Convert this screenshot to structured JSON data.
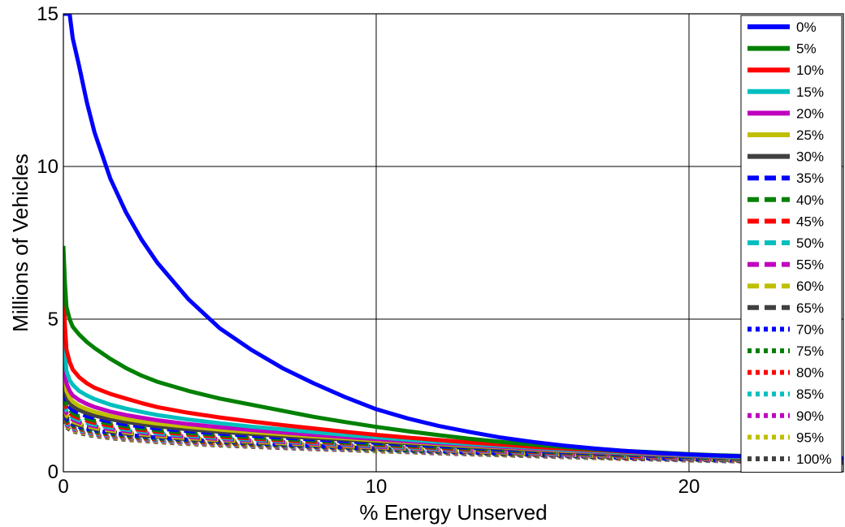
{
  "chart_data": {
    "type": "line",
    "title": "",
    "xlabel": "% Energy Unserved",
    "ylabel": "Millions of Vehicles",
    "xlim": [
      0,
      25
    ],
    "ylim": [
      0,
      15
    ],
    "xticks": [
      0,
      10,
      20
    ],
    "yticks": [
      0,
      5,
      10,
      15
    ],
    "grid": true,
    "legend_position": "right",
    "x": [
      0.05,
      0.1,
      0.2,
      0.3,
      0.5,
      0.75,
      1,
      1.5,
      2,
      2.5,
      3,
      4,
      5,
      6,
      7,
      8,
      9,
      10,
      11,
      12,
      13,
      14,
      15,
      16,
      17,
      18,
      19,
      20,
      21,
      22,
      23,
      24,
      25
    ],
    "series": [
      {
        "name": "0%",
        "color": "#0000ff",
        "style": "solid",
        "values": [
          15.0,
          15.0,
          15.0,
          14.2,
          13.3,
          12.1,
          11.1,
          9.6,
          8.5,
          7.6,
          6.85,
          5.65,
          4.7,
          4.0,
          3.4,
          2.9,
          2.45,
          2.05,
          1.75,
          1.5,
          1.3,
          1.12,
          0.98,
          0.86,
          0.76,
          0.68,
          0.62,
          0.57,
          0.53,
          0.5,
          0.48,
          0.46,
          0.44
        ]
      },
      {
        "name": "5%",
        "color": "#008000",
        "style": "solid",
        "values": [
          6.2,
          5.4,
          5.0,
          4.75,
          4.5,
          4.25,
          4.05,
          3.7,
          3.4,
          3.15,
          2.95,
          2.65,
          2.4,
          2.2,
          2.0,
          1.8,
          1.63,
          1.47,
          1.33,
          1.2,
          1.08,
          0.98,
          0.89,
          0.81,
          0.74,
          0.68,
          0.63,
          0.58,
          0.54,
          0.51,
          0.48,
          0.46,
          0.44
        ]
      },
      {
        "name": "10%",
        "color": "#ff0000",
        "style": "solid",
        "values": [
          4.8,
          4.0,
          3.6,
          3.35,
          3.1,
          2.9,
          2.75,
          2.55,
          2.4,
          2.25,
          2.12,
          1.93,
          1.78,
          1.65,
          1.53,
          1.42,
          1.31,
          1.21,
          1.12,
          1.04,
          0.96,
          0.89,
          0.82,
          0.76,
          0.71,
          0.66,
          0.61,
          0.57,
          0.53,
          0.5,
          0.47,
          0.45,
          0.43
        ]
      },
      {
        "name": "15%",
        "color": "#00bfbf",
        "style": "solid",
        "values": [
          3.9,
          3.3,
          3.0,
          2.85,
          2.65,
          2.5,
          2.38,
          2.2,
          2.07,
          1.96,
          1.86,
          1.71,
          1.59,
          1.48,
          1.39,
          1.3,
          1.21,
          1.13,
          1.05,
          0.98,
          0.91,
          0.85,
          0.79,
          0.73,
          0.68,
          0.63,
          0.59,
          0.55,
          0.51,
          0.48,
          0.45,
          0.43,
          0.41
        ]
      },
      {
        "name": "20%",
        "color": "#bf00bf",
        "style": "solid",
        "values": [
          3.4,
          2.9,
          2.65,
          2.5,
          2.35,
          2.22,
          2.12,
          1.97,
          1.86,
          1.77,
          1.69,
          1.56,
          1.46,
          1.37,
          1.29,
          1.21,
          1.14,
          1.07,
          1.0,
          0.94,
          0.88,
          0.82,
          0.76,
          0.71,
          0.66,
          0.62,
          0.58,
          0.54,
          0.5,
          0.47,
          0.44,
          0.42,
          0.4
        ]
      },
      {
        "name": "25%",
        "color": "#bfbf00",
        "style": "solid",
        "values": [
          3.1,
          2.65,
          2.42,
          2.3,
          2.16,
          2.05,
          1.96,
          1.83,
          1.73,
          1.65,
          1.58,
          1.47,
          1.38,
          1.3,
          1.23,
          1.16,
          1.1,
          1.03,
          0.97,
          0.91,
          0.85,
          0.8,
          0.74,
          0.69,
          0.65,
          0.61,
          0.57,
          0.53,
          0.49,
          0.46,
          0.43,
          0.41,
          0.39
        ]
      },
      {
        "name": "30%",
        "color": "#404040",
        "style": "solid",
        "values": [
          2.8,
          2.45,
          2.25,
          2.14,
          2.02,
          1.92,
          1.84,
          1.72,
          1.63,
          1.56,
          1.49,
          1.39,
          1.31,
          1.24,
          1.17,
          1.11,
          1.05,
          0.99,
          0.93,
          0.88,
          0.82,
          0.77,
          0.72,
          0.67,
          0.63,
          0.59,
          0.55,
          0.51,
          0.48,
          0.45,
          0.42,
          0.4,
          0.38
        ]
      },
      {
        "name": "35%",
        "color": "#0000ff",
        "style": "dashed",
        "values": [
          2.6,
          2.3,
          2.12,
          2.02,
          1.91,
          1.82,
          1.75,
          1.64,
          1.55,
          1.48,
          1.42,
          1.33,
          1.25,
          1.18,
          1.12,
          1.06,
          1.0,
          0.95,
          0.89,
          0.84,
          0.79,
          0.74,
          0.69,
          0.65,
          0.61,
          0.57,
          0.53,
          0.5,
          0.47,
          0.44,
          0.41,
          0.39,
          0.37
        ]
      },
      {
        "name": "40%",
        "color": "#008000",
        "style": "dashed",
        "values": [
          2.45,
          2.18,
          2.02,
          1.92,
          1.82,
          1.74,
          1.67,
          1.57,
          1.49,
          1.42,
          1.36,
          1.27,
          1.2,
          1.13,
          1.07,
          1.02,
          0.96,
          0.91,
          0.86,
          0.81,
          0.76,
          0.71,
          0.67,
          0.63,
          0.59,
          0.55,
          0.52,
          0.48,
          0.45,
          0.42,
          0.4,
          0.38,
          0.36
        ]
      },
      {
        "name": "45%",
        "color": "#ff0000",
        "style": "dashed",
        "values": [
          2.35,
          2.08,
          1.93,
          1.84,
          1.75,
          1.67,
          1.6,
          1.51,
          1.43,
          1.37,
          1.31,
          1.22,
          1.15,
          1.09,
          1.03,
          0.98,
          0.93,
          0.88,
          0.83,
          0.78,
          0.73,
          0.69,
          0.65,
          0.61,
          0.57,
          0.53,
          0.5,
          0.47,
          0.44,
          0.41,
          0.39,
          0.37,
          0.35
        ]
      },
      {
        "name": "50%",
        "color": "#00bfbf",
        "style": "dashed",
        "values": [
          2.25,
          2.0,
          1.86,
          1.77,
          1.68,
          1.6,
          1.54,
          1.45,
          1.38,
          1.32,
          1.26,
          1.18,
          1.11,
          1.05,
          1.0,
          0.95,
          0.9,
          0.85,
          0.8,
          0.75,
          0.71,
          0.67,
          0.63,
          0.59,
          0.55,
          0.52,
          0.49,
          0.46,
          0.43,
          0.4,
          0.38,
          0.36,
          0.34
        ]
      },
      {
        "name": "55%",
        "color": "#bf00bf",
        "style": "dashed",
        "values": [
          2.15,
          1.92,
          1.79,
          1.71,
          1.62,
          1.55,
          1.49,
          1.4,
          1.33,
          1.27,
          1.22,
          1.14,
          1.07,
          1.02,
          0.97,
          0.92,
          0.87,
          0.82,
          0.78,
          0.73,
          0.69,
          0.65,
          0.61,
          0.57,
          0.54,
          0.5,
          0.47,
          0.44,
          0.42,
          0.39,
          0.37,
          0.35,
          0.33
        ]
      },
      {
        "name": "60%",
        "color": "#bfbf00",
        "style": "dashed",
        "values": [
          2.05,
          1.85,
          1.73,
          1.65,
          1.57,
          1.5,
          1.44,
          1.35,
          1.29,
          1.23,
          1.18,
          1.1,
          1.04,
          0.99,
          0.94,
          0.89,
          0.84,
          0.8,
          0.76,
          0.71,
          0.67,
          0.63,
          0.59,
          0.56,
          0.52,
          0.49,
          0.46,
          0.43,
          0.41,
          0.38,
          0.36,
          0.34,
          0.32
        ]
      },
      {
        "name": "65%",
        "color": "#404040",
        "style": "dashed",
        "values": [
          1.98,
          1.79,
          1.67,
          1.6,
          1.52,
          1.45,
          1.4,
          1.31,
          1.25,
          1.19,
          1.15,
          1.07,
          1.01,
          0.96,
          0.91,
          0.87,
          0.82,
          0.78,
          0.74,
          0.7,
          0.66,
          0.62,
          0.58,
          0.55,
          0.51,
          0.48,
          0.45,
          0.42,
          0.4,
          0.37,
          0.35,
          0.33,
          0.31
        ]
      },
      {
        "name": "70%",
        "color": "#0000ff",
        "style": "dotted",
        "values": [
          1.9,
          1.73,
          1.62,
          1.55,
          1.47,
          1.41,
          1.36,
          1.28,
          1.22,
          1.16,
          1.12,
          1.05,
          0.99,
          0.94,
          0.89,
          0.85,
          0.8,
          0.76,
          0.72,
          0.68,
          0.64,
          0.61,
          0.57,
          0.54,
          0.5,
          0.47,
          0.44,
          0.42,
          0.39,
          0.37,
          0.34,
          0.32,
          0.3
        ]
      },
      {
        "name": "75%",
        "color": "#008000",
        "style": "dotted",
        "values": [
          1.84,
          1.68,
          1.58,
          1.51,
          1.43,
          1.37,
          1.32,
          1.24,
          1.18,
          1.13,
          1.09,
          1.02,
          0.96,
          0.91,
          0.87,
          0.83,
          0.78,
          0.74,
          0.7,
          0.66,
          0.63,
          0.59,
          0.56,
          0.53,
          0.49,
          0.46,
          0.44,
          0.41,
          0.38,
          0.36,
          0.34,
          0.32,
          0.3
        ]
      },
      {
        "name": "80%",
        "color": "#ff0000",
        "style": "dotted",
        "values": [
          1.78,
          1.63,
          1.53,
          1.47,
          1.4,
          1.34,
          1.29,
          1.21,
          1.15,
          1.1,
          1.06,
          0.99,
          0.94,
          0.89,
          0.85,
          0.81,
          0.77,
          0.73,
          0.69,
          0.65,
          0.62,
          0.58,
          0.55,
          0.52,
          0.48,
          0.45,
          0.43,
          0.4,
          0.38,
          0.35,
          0.33,
          0.31,
          0.29
        ]
      },
      {
        "name": "85%",
        "color": "#00bfbf",
        "style": "dotted",
        "values": [
          1.72,
          1.58,
          1.49,
          1.43,
          1.36,
          1.3,
          1.25,
          1.18,
          1.12,
          1.08,
          1.03,
          0.97,
          0.92,
          0.87,
          0.83,
          0.79,
          0.75,
          0.71,
          0.67,
          0.64,
          0.6,
          0.57,
          0.54,
          0.51,
          0.47,
          0.45,
          0.42,
          0.39,
          0.37,
          0.35,
          0.33,
          0.31,
          0.29
        ]
      },
      {
        "name": "90%",
        "color": "#bf00bf",
        "style": "dotted",
        "values": [
          1.67,
          1.54,
          1.45,
          1.39,
          1.33,
          1.27,
          1.22,
          1.15,
          1.1,
          1.05,
          1.01,
          0.95,
          0.9,
          0.85,
          0.81,
          0.77,
          0.73,
          0.7,
          0.66,
          0.63,
          0.59,
          0.56,
          0.53,
          0.5,
          0.47,
          0.44,
          0.41,
          0.39,
          0.36,
          0.34,
          0.32,
          0.3,
          0.28
        ]
      },
      {
        "name": "95%",
        "color": "#bfbf00",
        "style": "dotted",
        "values": [
          1.62,
          1.5,
          1.42,
          1.36,
          1.3,
          1.24,
          1.2,
          1.13,
          1.08,
          1.03,
          0.99,
          0.93,
          0.88,
          0.84,
          0.8,
          0.76,
          0.72,
          0.68,
          0.65,
          0.62,
          0.58,
          0.55,
          0.52,
          0.49,
          0.46,
          0.43,
          0.41,
          0.38,
          0.36,
          0.34,
          0.32,
          0.3,
          0.28
        ]
      },
      {
        "name": "100%",
        "color": "#404040",
        "style": "dotted",
        "values": [
          1.57,
          1.46,
          1.38,
          1.33,
          1.27,
          1.21,
          1.17,
          1.1,
          1.05,
          1.01,
          0.97,
          0.91,
          0.86,
          0.82,
          0.78,
          0.74,
          0.71,
          0.67,
          0.64,
          0.6,
          0.57,
          0.54,
          0.51,
          0.48,
          0.45,
          0.42,
          0.4,
          0.37,
          0.35,
          0.33,
          0.31,
          0.29,
          0.27
        ]
      }
    ]
  }
}
